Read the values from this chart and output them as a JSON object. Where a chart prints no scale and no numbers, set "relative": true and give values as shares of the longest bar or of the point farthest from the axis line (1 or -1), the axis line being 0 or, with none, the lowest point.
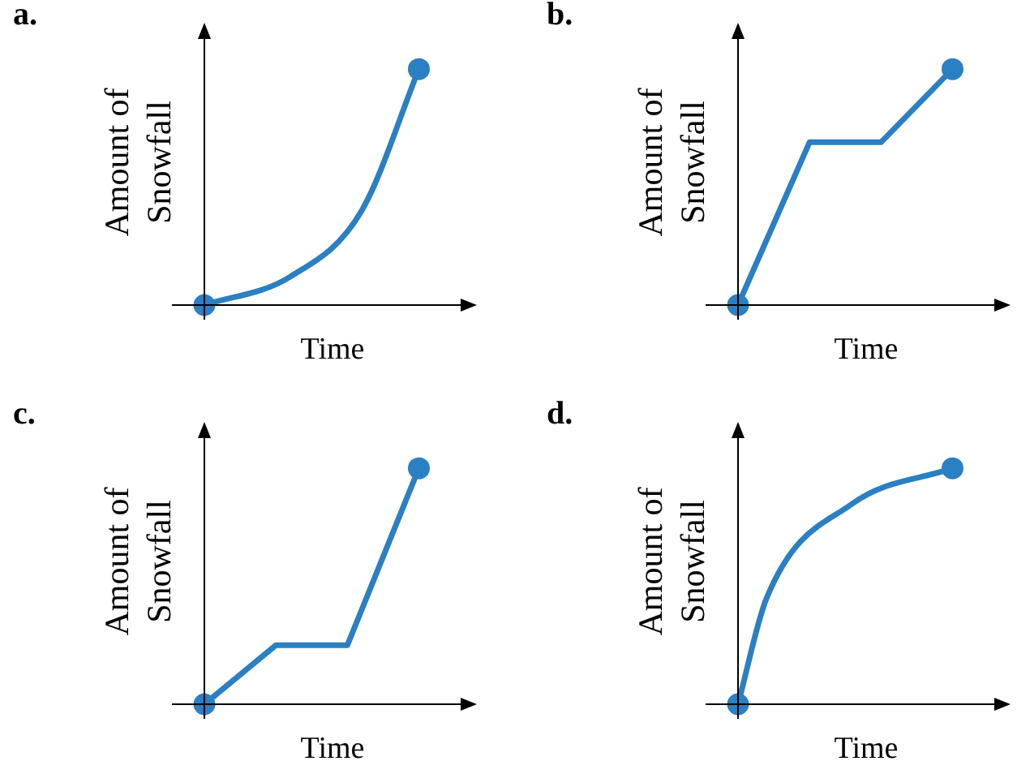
{
  "chart_data": [
    {
      "type": "line",
      "title": "a.",
      "xlabel": "Time",
      "ylabel": "Amount of Snowfall",
      "relative": true,
      "marker": "circle",
      "categories": [
        null,
        null,
        null,
        null,
        null,
        null,
        null,
        null,
        null,
        null,
        null,
        null,
        null,
        null,
        null,
        null,
        null,
        null,
        null,
        null
      ],
      "series": [
        {
          "color": "#2b7fc3",
          "values": [
            0,
            null,
            null,
            null,
            null,
            null,
            0.12,
            null,
            null,
            null,
            null,
            0.4,
            null,
            null,
            null,
            1,
            null,
            null,
            null,
            null
          ]
        }
      ]
    },
    {
      "type": "line",
      "title": "b.",
      "xlabel": "Time",
      "ylabel": "Amount of Snowfall",
      "relative": true,
      "marker": "circle",
      "categories": [
        null,
        null,
        null,
        null,
        null,
        null,
        null,
        null,
        null,
        null,
        null,
        null,
        null,
        null,
        null,
        null,
        null,
        null,
        null,
        null
      ],
      "series": [
        {
          "color": "#2b7fc3",
          "values": [
            0,
            null,
            null,
            null,
            null,
            0.69,
            null,
            null,
            null,
            null,
            0.69,
            null,
            null,
            null,
            null,
            1,
            null,
            null,
            null,
            null
          ]
        }
      ]
    },
    {
      "type": "line",
      "title": "c.",
      "xlabel": "Time",
      "ylabel": "Amount of Snowfall",
      "relative": true,
      "marker": "circle",
      "categories": [
        null,
        null,
        null,
        null,
        null,
        null,
        null,
        null,
        null,
        null,
        null,
        null,
        null,
        null,
        null,
        null,
        null,
        null,
        null,
        null
      ],
      "series": [
        {
          "color": "#2b7fc3",
          "values": [
            0,
            null,
            null,
            null,
            null,
            0.25,
            null,
            null,
            null,
            null,
            0.25,
            null,
            null,
            null,
            null,
            1,
            null,
            null,
            null,
            null
          ]
        }
      ]
    },
    {
      "type": "line",
      "title": "d.",
      "xlabel": "Time",
      "ylabel": "Amount of Snowfall",
      "relative": true,
      "marker": "circle",
      "categories": [
        null,
        null,
        null,
        null,
        null,
        null,
        null,
        null,
        null,
        null,
        null,
        null,
        null,
        null,
        null,
        null,
        null,
        null,
        null,
        null
      ],
      "series": [
        {
          "color": "#2b7fc3",
          "values": [
            0,
            null,
            0.45,
            null,
            null,
            null,
            null,
            null,
            0.85,
            null,
            null,
            null,
            null,
            null,
            null,
            1,
            null,
            null,
            null,
            null
          ]
        }
      ]
    }
  ]
}
